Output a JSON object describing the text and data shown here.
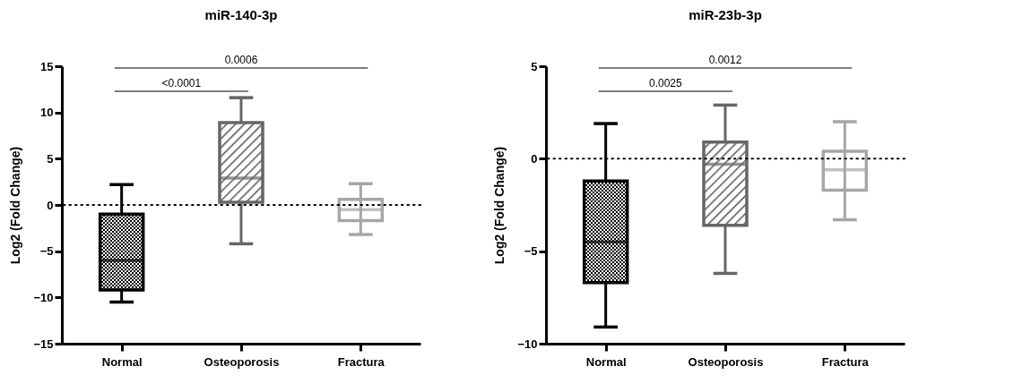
{
  "chart_data": [
    {
      "type": "box",
      "title": "miR-140-3p",
      "ylabel": "Log2 (Fold Change)",
      "categories": [
        "Normal",
        "Osteoporosis",
        "Fractura"
      ],
      "boxes": [
        {
          "low": -10.5,
          "q1": -9.2,
          "median": -6.0,
          "q3": -1.0,
          "high": 2.2
        },
        {
          "low": -4.2,
          "q1": 0.3,
          "median": 2.9,
          "q3": 8.9,
          "high": 11.6
        },
        {
          "low": -3.2,
          "q1": -1.7,
          "median": -0.5,
          "q3": 0.6,
          "high": 2.3
        }
      ],
      "colors": [
        "#000000",
        "#666666",
        "#a6a6a6"
      ],
      "ylim": [
        -15,
        15
      ],
      "yticks": [
        -15,
        -10,
        -5,
        0,
        5,
        10,
        15
      ],
      "grid": false,
      "ref_lines": [
        {
          "axis": "y",
          "value": 0,
          "line_style": "dotted",
          "color": "#000000"
        }
      ],
      "annotations": [
        "<0.0001",
        "0.0006"
      ]
    },
    {
      "type": "box",
      "title": "miR-23b-3p",
      "ylabel": "Log2 (Fold Change)",
      "categories": [
        "Normal",
        "Osteoporosis",
        "Fractura"
      ],
      "boxes": [
        {
          "low": -9.1,
          "q1": -6.7,
          "median": -4.5,
          "q3": -1.2,
          "high": 1.9
        },
        {
          "low": -6.2,
          "q1": -3.6,
          "median": -0.3,
          "q3": 0.9,
          "high": 2.9
        },
        {
          "low": -3.3,
          "q1": -1.7,
          "median": -0.6,
          "q3": 0.4,
          "high": 2.0
        }
      ],
      "colors": [
        "#000000",
        "#666666",
        "#a6a6a6"
      ],
      "ylim": [
        -10,
        5
      ],
      "yticks": [
        -10,
        -5,
        0,
        5
      ],
      "grid": false,
      "ref_lines": [
        {
          "axis": "y",
          "value": 0,
          "line_style": "dotted",
          "color": "#000000"
        }
      ],
      "annotations": [
        "0.0025",
        "0.0012"
      ]
    }
  ]
}
